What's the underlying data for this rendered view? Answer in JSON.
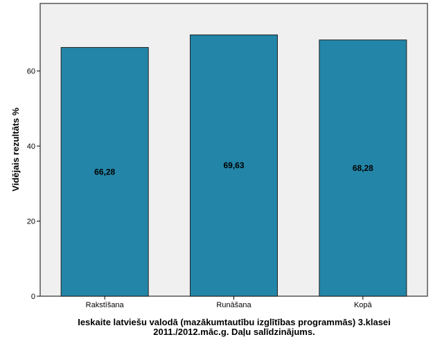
{
  "chart_data": {
    "type": "bar",
    "title": "Ieskaite latviešu valodā (mazākumtautību izglītības programmās) 3.klasei",
    "subtitle": "2011./2012.māc.g. Daļu salīdzinājums.",
    "xlabel": "",
    "ylabel": "Vidējais rezultāts %",
    "categories": [
      "Rakstīšana",
      "Runāšana",
      "Kopā"
    ],
    "values": [
      66.28,
      69.63,
      68.28
    ],
    "data_labels": [
      "66,28",
      "69,63",
      "68,28"
    ],
    "ylim": [
      0,
      78
    ],
    "yticks": [
      0,
      20,
      40,
      60
    ],
    "grid": false,
    "colors": {
      "bar": "#2385a8",
      "plot_bg": "#f0f0f0",
      "border": "#555555"
    }
  }
}
